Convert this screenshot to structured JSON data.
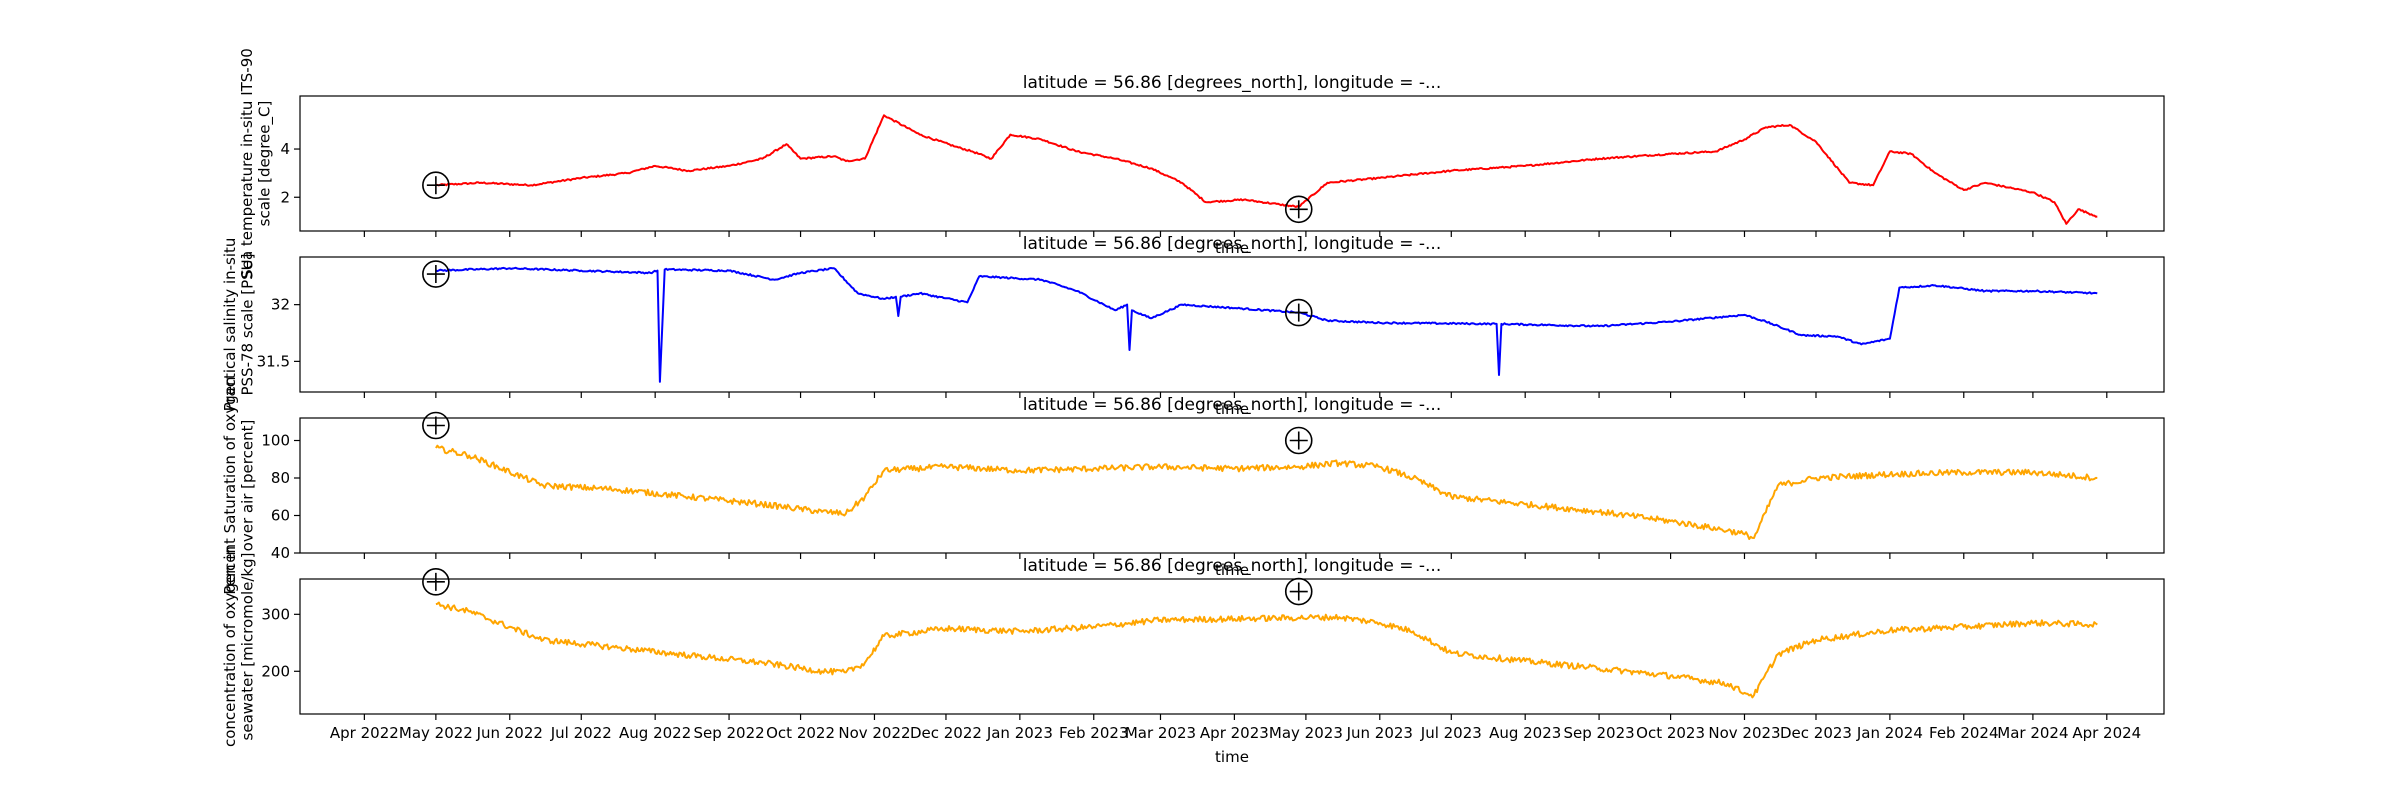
{
  "chart_data": [
    {
      "type": "line",
      "title": "latitude = 56.86 [degrees_north], longitude = -...",
      "ylabel": [
        "Sea temperature in-situ ITS-90",
        "scale [degree_C]"
      ],
      "xlabel": "time",
      "color": "#ff0000",
      "ylim": [
        0.6,
        6.2
      ],
      "yticks": [
        2,
        4
      ],
      "x": [
        "2022-05-01",
        "2022-05-20",
        "2022-06-10",
        "2022-07-01",
        "2022-07-20",
        "2022-08-01",
        "2022-08-15",
        "2022-09-01",
        "2022-09-15",
        "2022-09-25",
        "2022-10-01",
        "2022-10-15",
        "2022-10-20",
        "2022-10-28",
        "2022-11-05",
        "2022-11-20",
        "2022-12-05",
        "2022-12-12",
        "2022-12-20",
        "2022-12-28",
        "2023-01-10",
        "2023-01-25",
        "2023-02-10",
        "2023-02-25",
        "2023-03-10",
        "2023-03-20",
        "2023-04-05",
        "2023-04-20",
        "2023-04-28",
        "2023-05-10",
        "2023-06-01",
        "2023-07-01",
        "2023-08-01",
        "2023-09-01",
        "2023-10-01",
        "2023-10-20",
        "2023-11-01",
        "2023-11-10",
        "2023-11-20",
        "2023-12-01",
        "2023-12-15",
        "2023-12-25",
        "2024-01-01",
        "2024-01-10",
        "2024-01-20",
        "2024-02-01",
        "2024-02-10",
        "2024-02-20",
        "2024-03-01",
        "2024-03-10",
        "2024-03-15",
        "2024-03-20",
        "2024-03-28"
      ],
      "values": [
        2.5,
        2.6,
        2.5,
        2.8,
        3.0,
        3.3,
        3.1,
        3.3,
        3.6,
        4.2,
        3.6,
        3.7,
        3.5,
        3.6,
        5.4,
        4.6,
        4.1,
        3.9,
        3.6,
        4.6,
        4.4,
        3.9,
        3.6,
        3.2,
        2.6,
        1.8,
        1.9,
        1.7,
        1.6,
        2.6,
        2.8,
        3.1,
        3.3,
        3.6,
        3.8,
        3.9,
        4.4,
        4.9,
        5.0,
        4.3,
        2.6,
        2.5,
        3.9,
        3.8,
        3.0,
        2.3,
        2.6,
        2.4,
        2.2,
        1.8,
        0.9,
        1.5,
        1.2
      ],
      "markers": [
        {
          "x": "2022-05-01",
          "y": 2.5
        },
        {
          "x": "2023-04-28",
          "y": 1.5
        }
      ]
    },
    {
      "type": "line",
      "title": "latitude = 56.86 [degrees_north], longitude = -...",
      "ylabel": [
        "Practical salinity in-situ",
        "PSS-78 scale [PSU]"
      ],
      "xlabel": "time",
      "color": "#0000ff",
      "ylim": [
        31.23,
        32.42
      ],
      "yticks": [
        31.5,
        32.0
      ],
      "x": [
        "2022-05-01",
        "2022-06-01",
        "2022-07-01",
        "2022-07-30",
        "2022-08-02",
        "2022-08-03",
        "2022-08-05",
        "2022-09-01",
        "2022-09-20",
        "2022-10-01",
        "2022-10-15",
        "2022-10-25",
        "2022-11-05",
        "2022-11-10",
        "2022-11-11",
        "2022-11-12",
        "2022-11-20",
        "2022-12-10",
        "2022-12-15",
        "2023-01-10",
        "2023-01-25",
        "2023-02-10",
        "2023-02-15",
        "2023-02-16",
        "2023-02-17",
        "2023-02-25",
        "2023-03-10",
        "2023-04-01",
        "2023-04-28",
        "2023-05-10",
        "2023-06-01",
        "2023-07-20",
        "2023-07-21",
        "2023-07-22",
        "2023-09-01",
        "2023-10-01",
        "2023-11-01",
        "2023-11-10",
        "2023-11-25",
        "2023-12-10",
        "2023-12-20",
        "2024-01-01",
        "2024-01-05",
        "2024-01-20",
        "2024-02-10",
        "2024-03-01",
        "2024-03-28"
      ],
      "values": [
        32.3,
        32.32,
        32.3,
        32.28,
        32.3,
        31.32,
        32.31,
        32.3,
        32.22,
        32.28,
        32.32,
        32.1,
        32.05,
        32.07,
        31.9,
        32.07,
        32.1,
        32.02,
        32.25,
        32.22,
        32.12,
        31.95,
        32.0,
        31.6,
        31.95,
        31.88,
        32.0,
        31.97,
        31.93,
        31.86,
        31.84,
        31.83,
        31.38,
        31.83,
        31.81,
        31.85,
        31.91,
        31.85,
        31.73,
        31.72,
        31.65,
        31.7,
        32.15,
        32.17,
        32.12,
        32.12,
        32.1
      ],
      "markers": [
        {
          "x": "2022-05-01",
          "y": 32.27
        },
        {
          "x": "2023-04-28",
          "y": 31.93
        }
      ]
    },
    {
      "type": "line",
      "title": "latitude = 56.86 [degrees_north], longitude = -...",
      "ylabel": [
        "Percent Saturation of oxygen",
        "over air [percent]"
      ],
      "xlabel": "time",
      "color": "#ffa500",
      "ylim": [
        40,
        112
      ],
      "yticks": [
        40,
        60,
        80,
        100
      ],
      "x": [
        "2022-05-01",
        "2022-05-15",
        "2022-06-15",
        "2022-07-15",
        "2022-08-15",
        "2022-09-15",
        "2022-10-10",
        "2022-10-20",
        "2022-10-28",
        "2022-11-05",
        "2022-12-01",
        "2023-01-01",
        "2023-02-01",
        "2023-03-01",
        "2023-04-01",
        "2023-04-28",
        "2023-05-15",
        "2023-06-01",
        "2023-06-15",
        "2023-07-01",
        "2023-08-01",
        "2023-09-01",
        "2023-10-01",
        "2023-10-25",
        "2023-11-01",
        "2023-11-05",
        "2023-11-15",
        "2023-12-01",
        "2024-01-01",
        "2024-02-01",
        "2024-03-01",
        "2024-03-28"
      ],
      "values": [
        96,
        92,
        76,
        74,
        70,
        66,
        62,
        61,
        70,
        84,
        86,
        84,
        85,
        86,
        85,
        86,
        88,
        86,
        80,
        70,
        66,
        62,
        57,
        52,
        50,
        48,
        76,
        80,
        82,
        83,
        83,
        80
      ],
      "markers": [
        {
          "x": "2022-05-01",
          "y": 108
        },
        {
          "x": "2023-04-28",
          "y": 100
        }
      ]
    },
    {
      "type": "line",
      "title": "latitude = 56.86 [degrees_north], longitude = -...",
      "ylabel": [
        "concentration of oxygen in",
        "seawater [micromole/kg]"
      ],
      "xlabel": "time",
      "color": "#ffa500",
      "ylim": [
        125,
        362
      ],
      "yticks": [
        200,
        300
      ],
      "x": [
        "2022-05-01",
        "2022-05-15",
        "2022-06-15",
        "2022-07-15",
        "2022-08-15",
        "2022-09-15",
        "2022-10-10",
        "2022-10-20",
        "2022-10-28",
        "2022-11-05",
        "2022-12-01",
        "2023-01-01",
        "2023-02-01",
        "2023-03-01",
        "2023-04-01",
        "2023-04-28",
        "2023-05-15",
        "2023-06-01",
        "2023-06-15",
        "2023-07-01",
        "2023-08-01",
        "2023-09-01",
        "2023-10-01",
        "2023-10-25",
        "2023-11-01",
        "2023-11-05",
        "2023-11-15",
        "2023-12-01",
        "2024-01-01",
        "2024-02-01",
        "2024-03-01",
        "2024-03-28"
      ],
      "values": [
        318,
        305,
        255,
        242,
        228,
        215,
        200,
        198,
        215,
        262,
        275,
        270,
        278,
        290,
        292,
        294,
        295,
        285,
        270,
        232,
        218,
        205,
        192,
        178,
        162,
        158,
        230,
        255,
        272,
        278,
        285,
        282
      ],
      "markers": [
        {
          "x": "2022-05-01",
          "y": 357
        },
        {
          "x": "2023-04-28",
          "y": 340
        }
      ]
    }
  ],
  "shared_x": {
    "xlabel": "time",
    "xlim": [
      "2022-03-05",
      "2024-04-25"
    ],
    "ticks": [
      {
        "date": "2022-04-01",
        "label": "Apr 2022"
      },
      {
        "date": "2022-05-01",
        "label": "May 2022"
      },
      {
        "date": "2022-06-01",
        "label": "Jun 2022"
      },
      {
        "date": "2022-07-01",
        "label": "Jul 2022"
      },
      {
        "date": "2022-08-01",
        "label": "Aug 2022"
      },
      {
        "date": "2022-09-01",
        "label": "Sep 2022"
      },
      {
        "date": "2022-10-01",
        "label": "Oct 2022"
      },
      {
        "date": "2022-11-01",
        "label": "Nov 2022"
      },
      {
        "date": "2022-12-01",
        "label": "Dec 2022"
      },
      {
        "date": "2023-01-01",
        "label": "Jan 2023"
      },
      {
        "date": "2023-02-01",
        "label": "Feb 2023"
      },
      {
        "date": "2023-03-01",
        "label": "Mar 2023"
      },
      {
        "date": "2023-04-01",
        "label": "Apr 2023"
      },
      {
        "date": "2023-05-01",
        "label": "May 2023"
      },
      {
        "date": "2023-06-01",
        "label": "Jun 2023"
      },
      {
        "date": "2023-07-01",
        "label": "Jul 2023"
      },
      {
        "date": "2023-08-01",
        "label": "Aug 2023"
      },
      {
        "date": "2023-09-01",
        "label": "Sep 2023"
      },
      {
        "date": "2023-10-01",
        "label": "Oct 2023"
      },
      {
        "date": "2023-11-01",
        "label": "Nov 2023"
      },
      {
        "date": "2023-12-01",
        "label": "Dec 2023"
      },
      {
        "date": "2024-01-01",
        "label": "Jan 2024"
      },
      {
        "date": "2024-02-01",
        "label": "Feb 2024"
      },
      {
        "date": "2024-03-01",
        "label": "Mar 2024"
      },
      {
        "date": "2024-04-01",
        "label": "Apr 2024"
      }
    ]
  }
}
